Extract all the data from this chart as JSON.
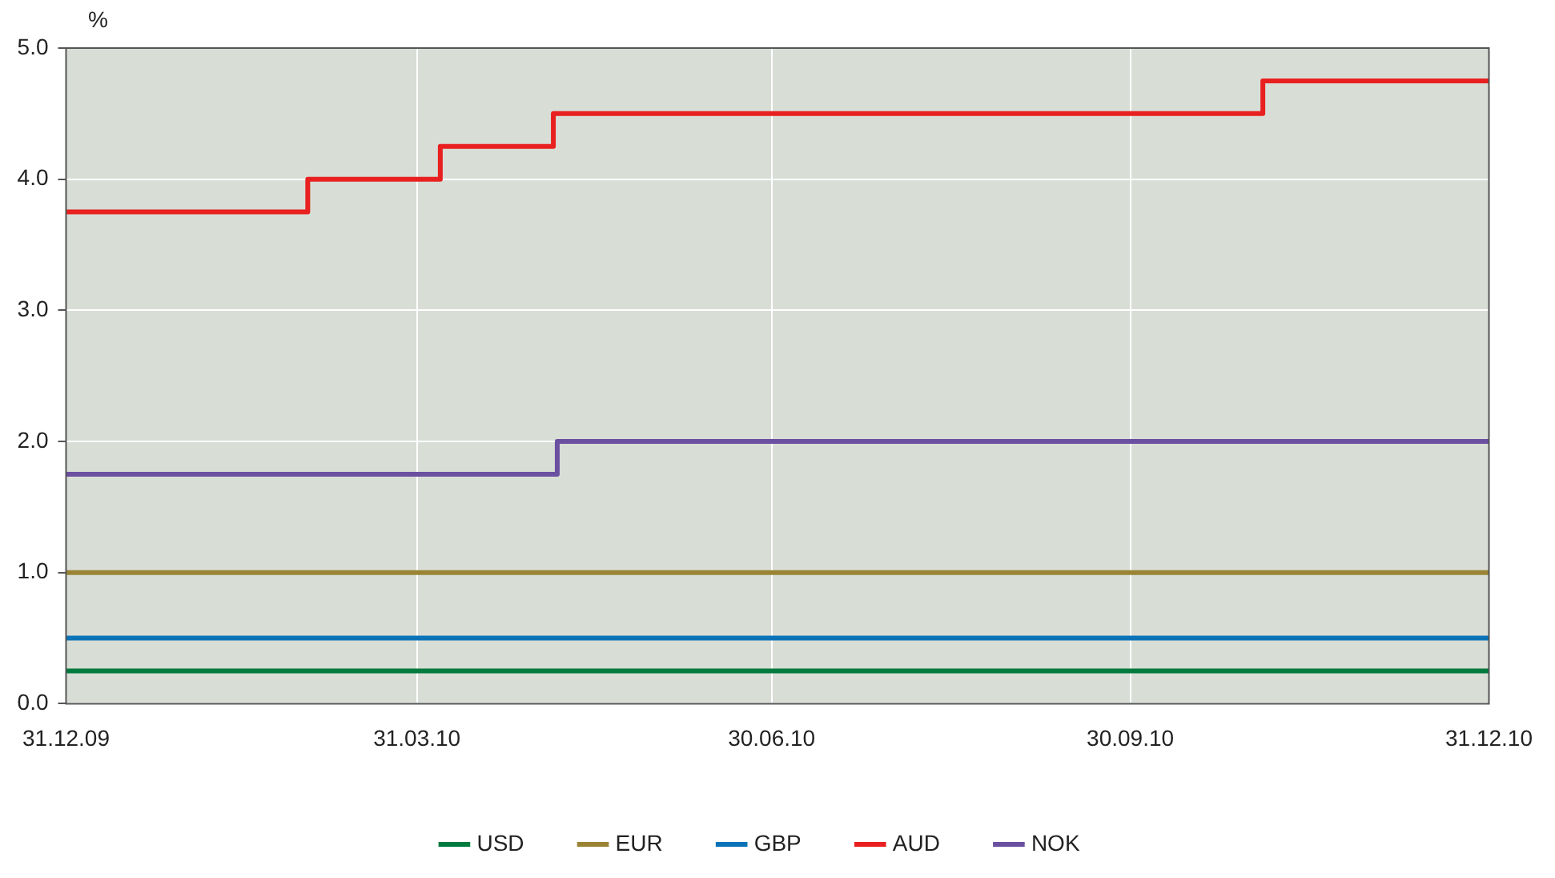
{
  "chart_data": {
    "type": "step",
    "ylabel": "%",
    "xlim": [
      "2009-12-31",
      "2010-12-31"
    ],
    "xticks": [
      {
        "value": "2009-12-31",
        "label": "31.12.09"
      },
      {
        "value": "2010-03-31",
        "label": "31.03.10"
      },
      {
        "value": "2010-06-30",
        "label": "30.06.10"
      },
      {
        "value": "2010-09-30",
        "label": "30.09.10"
      },
      {
        "value": "2010-12-31",
        "label": "31.12.10"
      }
    ],
    "ylim": [
      0,
      5
    ],
    "yticks": [
      {
        "value": 0,
        "label": "0.0"
      },
      {
        "value": 1,
        "label": "1.0"
      },
      {
        "value": 2,
        "label": "2.0"
      },
      {
        "value": 3,
        "label": "3.0"
      },
      {
        "value": 4,
        "label": "4.0"
      },
      {
        "value": 5,
        "label": "5.0"
      }
    ],
    "grid": true,
    "legend": "bottom",
    "marker": "none",
    "line_style": "solid",
    "series": [
      {
        "name": "USD",
        "color": "#007a3d",
        "x": [
          "2009-12-31",
          "2010-12-31"
        ],
        "values": [
          0.25,
          0.25
        ]
      },
      {
        "name": "EUR",
        "color": "#9a8434",
        "x": [
          "2009-12-31",
          "2010-12-31"
        ],
        "values": [
          1.0,
          1.0
        ]
      },
      {
        "name": "GBP",
        "color": "#0a73b8",
        "x": [
          "2009-12-31",
          "2010-12-31"
        ],
        "values": [
          0.5,
          0.5
        ]
      },
      {
        "name": "AUD",
        "color": "#e8201f",
        "x": [
          "2009-12-31",
          "2010-03-03",
          "2010-04-06",
          "2010-05-05",
          "2010-11-03",
          "2010-12-31"
        ],
        "values": [
          3.75,
          4.0,
          4.25,
          4.5,
          4.75,
          4.75
        ]
      },
      {
        "name": "NOK",
        "color": "#6b4fa0",
        "x": [
          "2009-12-31",
          "2010-05-06",
          "2010-12-31"
        ],
        "values": [
          1.75,
          2.0,
          2.0
        ]
      }
    ]
  }
}
